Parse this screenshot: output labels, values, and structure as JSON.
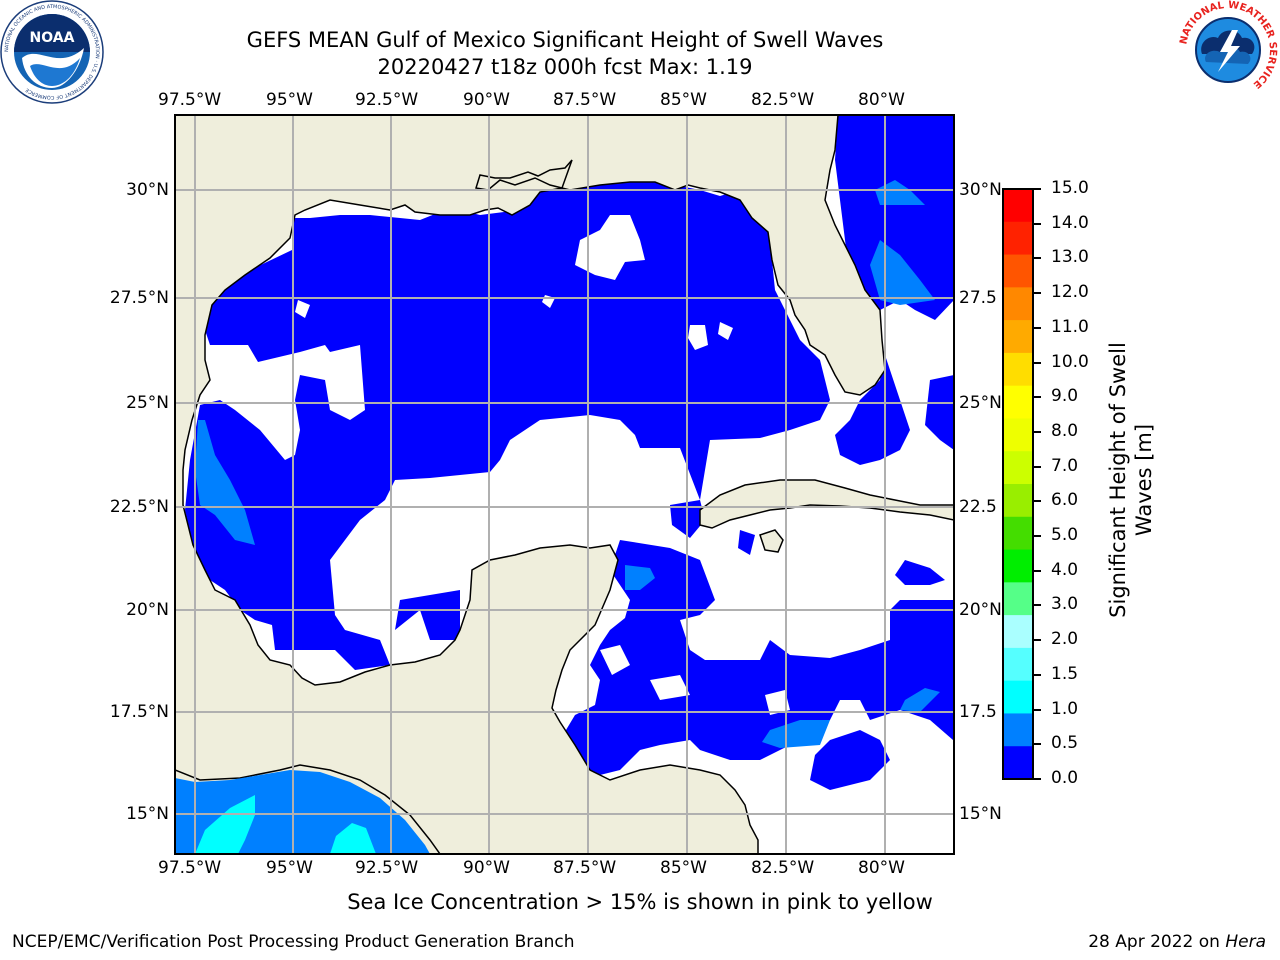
{
  "header": {
    "title": "GEFS MEAN Gulf of Mexico Significant Height of Swell Waves",
    "subtitle": "20220427 t18z 000h fcst   Max: 1.19",
    "noaa_logo_text": "NOAA",
    "noaa_ring_text": "NATIONAL OCEANIC AND ATMOSPHERIC ADMINISTRATION · U.S. DEPARTMENT OF COMMERCE",
    "nws_ring_text": "NATIONAL WEATHER SERVICE"
  },
  "map": {
    "lon_labels": [
      "97.5°W",
      "95°W",
      "92.5°W",
      "90°W",
      "87.5°W",
      "85°W",
      "82.5°W",
      "80°W"
    ],
    "lat_labels": [
      "30°N",
      "27.5°N",
      "25°N",
      "22.5°N",
      "20°N",
      "17.5°N",
      "15°N"
    ],
    "right_lat_labels": [
      "30°N",
      "27.5",
      "25°N",
      "22.5",
      "20°N",
      "17.5",
      "15°N"
    ],
    "colors": {
      "land": "#efeedc",
      "bin_0_0": "#0000ff",
      "bin_0_5": "#0080ff",
      "bin_1_5": "#00ffff",
      "grid": "#b0b0b0"
    }
  },
  "colorbar": {
    "label": "Significant Height of Swell Waves [m]",
    "label_line1": "Significant Height of Swell",
    "label_line2": "Waves [m]",
    "ticks": [
      "15.0",
      "14.0",
      "13.0",
      "12.0",
      "11.0",
      "10.0",
      "9.0",
      "8.0",
      "7.0",
      "6.0",
      "5.0",
      "4.0",
      "3.0",
      "2.0",
      "1.5",
      "1.0",
      "0.5",
      "0.0"
    ],
    "colors": [
      "#ff0000",
      "#ff2200",
      "#ff5500",
      "#ff8800",
      "#ffaa00",
      "#ffdd00",
      "#ffff00",
      "#eeff00",
      "#ccff00",
      "#99ee00",
      "#44dd00",
      "#00ee00",
      "#55ff88",
      "#aaffff",
      "#55ffff",
      "#00ffff",
      "#0080ff",
      "#0000ff"
    ]
  },
  "footer": {
    "note": "Sea Ice Concentration > 15% is shown in pink to yellow",
    "credit": "NCEP/EMC/Verification Post Processing Product Generation Branch",
    "date": "28 Apr 2022 on",
    "machine": "Hera"
  }
}
